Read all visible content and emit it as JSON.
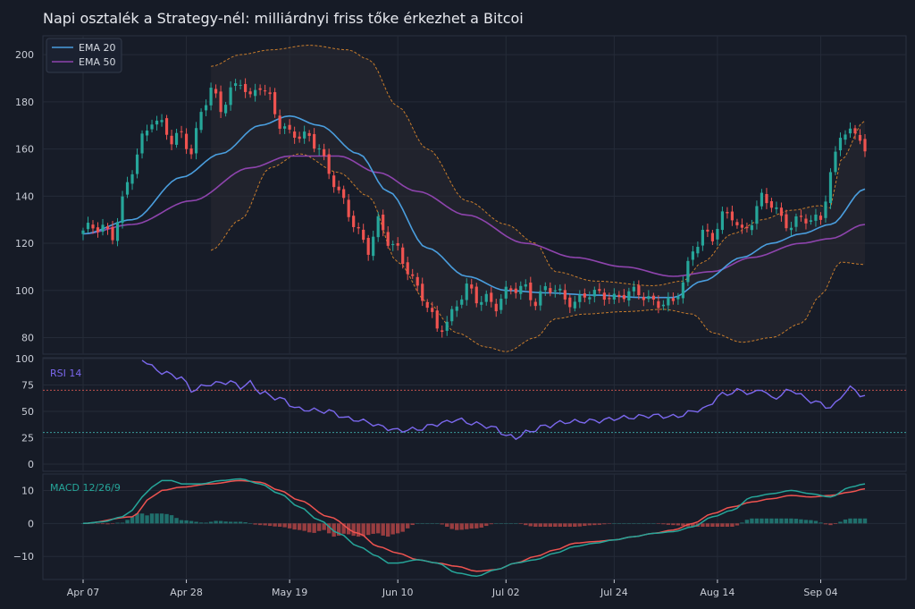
{
  "title": "Napi osztalék a Strategy-nél: milliárdnyi friss tőke érkezhet a Bitcoi",
  "colors": {
    "background": "#161b26",
    "panel": "#171c28",
    "grid": "#252b38",
    "up": "#26a69a",
    "down": "#ef5350",
    "ema20": "#4a9ede",
    "ema50": "#8e44ad",
    "band": "#c77c2c",
    "rsi": "#7b68ee",
    "rsi_upper": "#c0504d",
    "rsi_lower": "#3a9b9b",
    "macd": "#26a69a",
    "signal": "#ef5350"
  },
  "chart_data": [
    {
      "type": "candlestick",
      "x_ticks": [
        "Apr 07",
        "Apr 28",
        "May 19",
        "Jun 10",
        "Jul 02",
        "Jul 24",
        "Aug 14",
        "Sep 04"
      ],
      "y_ticks": [
        80,
        100,
        120,
        140,
        160,
        180,
        200
      ],
      "ylim": [
        73,
        208
      ],
      "legend": [
        "EMA 20",
        "EMA 50"
      ],
      "legend_position": "top-left",
      "grid": true,
      "overlays": [
        "EMA 20",
        "EMA 50",
        "Bollinger Bands (from Apr 28)"
      ],
      "close_keypoints": [
        [
          0,
          124
        ],
        [
          2,
          126
        ],
        [
          4,
          128
        ],
        [
          6,
          124
        ],
        [
          8,
          137
        ],
        [
          10,
          150
        ],
        [
          12,
          165
        ],
        [
          14,
          174
        ],
        [
          16,
          170
        ],
        [
          18,
          162
        ],
        [
          20,
          166
        ],
        [
          22,
          160
        ],
        [
          24,
          176
        ],
        [
          26,
          184
        ],
        [
          28,
          176
        ],
        [
          30,
          186
        ],
        [
          32,
          190
        ],
        [
          34,
          180
        ],
        [
          36,
          186
        ],
        [
          38,
          182
        ],
        [
          40,
          172
        ],
        [
          42,
          166
        ],
        [
          44,
          164
        ],
        [
          46,
          165
        ],
        [
          48,
          162
        ],
        [
          50,
          150
        ],
        [
          52,
          140
        ],
        [
          54,
          132
        ],
        [
          56,
          126
        ],
        [
          58,
          118
        ],
        [
          60,
          128
        ],
        [
          62,
          120
        ],
        [
          64,
          118
        ],
        [
          66,
          110
        ],
        [
          68,
          100
        ],
        [
          70,
          92
        ],
        [
          72,
          84
        ],
        [
          74,
          88
        ],
        [
          76,
          94
        ],
        [
          78,
          100
        ],
        [
          80,
          96
        ],
        [
          82,
          98
        ],
        [
          84,
          94
        ],
        [
          86,
          98
        ],
        [
          88,
          100
        ],
        [
          90,
          102
        ],
        [
          92,
          96
        ],
        [
          94,
          100
        ],
        [
          96,
          99
        ],
        [
          98,
          97
        ],
        [
          100,
          96
        ],
        [
          102,
          98
        ],
        [
          104,
          97
        ],
        [
          106,
          98
        ],
        [
          108,
          98
        ],
        [
          110,
          99
        ],
        [
          112,
          98
        ],
        [
          114,
          97
        ],
        [
          116,
          96
        ],
        [
          118,
          96
        ],
        [
          120,
          94
        ],
        [
          122,
          102
        ],
        [
          124,
          118
        ],
        [
          126,
          126
        ],
        [
          128,
          122
        ],
        [
          130,
          130
        ],
        [
          132,
          132
        ],
        [
          134,
          126
        ],
        [
          136,
          130
        ],
        [
          138,
          138
        ],
        [
          140,
          136
        ],
        [
          142,
          132
        ],
        [
          144,
          128
        ],
        [
          146,
          130
        ],
        [
          148,
          128
        ],
        [
          150,
          132
        ],
        [
          152,
          150
        ],
        [
          154,
          166
        ],
        [
          156,
          165
        ],
        [
          158,
          166
        ],
        [
          159,
          160
        ]
      ],
      "ema20_keypoints": [
        [
          0,
          124
        ],
        [
          10,
          130
        ],
        [
          20,
          148
        ],
        [
          28,
          158
        ],
        [
          36,
          170
        ],
        [
          42,
          174
        ],
        [
          48,
          170
        ],
        [
          56,
          158
        ],
        [
          62,
          142
        ],
        [
          70,
          118
        ],
        [
          78,
          106
        ],
        [
          86,
          100
        ],
        [
          94,
          99
        ],
        [
          104,
          98
        ],
        [
          114,
          97
        ],
        [
          120,
          97
        ],
        [
          126,
          104
        ],
        [
          134,
          114
        ],
        [
          140,
          120
        ],
        [
          146,
          124
        ],
        [
          152,
          128
        ],
        [
          159,
          143
        ]
      ],
      "ema50_keypoints": [
        [
          0,
          124
        ],
        [
          10,
          128
        ],
        [
          22,
          138
        ],
        [
          34,
          152
        ],
        [
          42,
          157
        ],
        [
          52,
          157
        ],
        [
          60,
          150
        ],
        [
          68,
          142
        ],
        [
          78,
          132
        ],
        [
          90,
          120
        ],
        [
          100,
          114
        ],
        [
          110,
          110
        ],
        [
          120,
          106
        ],
        [
          128,
          108
        ],
        [
          136,
          114
        ],
        [
          146,
          120
        ],
        [
          152,
          122
        ],
        [
          159,
          128
        ]
      ],
      "band_start_index": 26,
      "band_upper_keypoints": [
        [
          26,
          195
        ],
        [
          32,
          200
        ],
        [
          38,
          202
        ],
        [
          46,
          204
        ],
        [
          54,
          202
        ],
        [
          58,
          198
        ],
        [
          64,
          178
        ],
        [
          70,
          160
        ],
        [
          78,
          138
        ],
        [
          86,
          128
        ],
        [
          92,
          120
        ],
        [
          96,
          108
        ],
        [
          104,
          104
        ],
        [
          116,
          102
        ],
        [
          122,
          104
        ],
        [
          126,
          112
        ],
        [
          132,
          124
        ],
        [
          138,
          130
        ],
        [
          144,
          134
        ],
        [
          150,
          136
        ],
        [
          152,
          135
        ],
        [
          154,
          155
        ],
        [
          159,
          172
        ]
      ],
      "band_lower_keypoints": [
        [
          26,
          117
        ],
        [
          32,
          130
        ],
        [
          38,
          152
        ],
        [
          44,
          158
        ],
        [
          52,
          150
        ],
        [
          58,
          140
        ],
        [
          64,
          112
        ],
        [
          70,
          95
        ],
        [
          76,
          82
        ],
        [
          82,
          76
        ],
        [
          86,
          74
        ],
        [
          92,
          80
        ],
        [
          96,
          88
        ],
        [
          102,
          90
        ],
        [
          110,
          91
        ],
        [
          118,
          92
        ],
        [
          124,
          90
        ],
        [
          128,
          82
        ],
        [
          134,
          78
        ],
        [
          140,
          80
        ],
        [
          146,
          86
        ],
        [
          150,
          98
        ],
        [
          154,
          112
        ],
        [
          159,
          111
        ]
      ]
    },
    {
      "type": "line",
      "legend": [
        "RSI 14"
      ],
      "y_ticks": [
        0,
        25,
        50,
        75,
        100
      ],
      "ylim": [
        0,
        100
      ],
      "reference_lines": [
        70,
        30
      ],
      "rsi_keypoints": [
        [
          12,
          100
        ],
        [
          14,
          92
        ],
        [
          16,
          87
        ],
        [
          20,
          82
        ],
        [
          22,
          70
        ],
        [
          26,
          76
        ],
        [
          30,
          78
        ],
        [
          32,
          73
        ],
        [
          34,
          77
        ],
        [
          36,
          68
        ],
        [
          40,
          62
        ],
        [
          44,
          52
        ],
        [
          50,
          50
        ],
        [
          54,
          43
        ],
        [
          58,
          40
        ],
        [
          60,
          36
        ],
        [
          64,
          32
        ],
        [
          68,
          33
        ],
        [
          72,
          38
        ],
        [
          76,
          42
        ],
        [
          80,
          38
        ],
        [
          84,
          34
        ],
        [
          86,
          27
        ],
        [
          88,
          25
        ],
        [
          90,
          30
        ],
        [
          94,
          36
        ],
        [
          98,
          40
        ],
        [
          104,
          41
        ],
        [
          110,
          44
        ],
        [
          116,
          46
        ],
        [
          120,
          45
        ],
        [
          126,
          52
        ],
        [
          130,
          66
        ],
        [
          134,
          70
        ],
        [
          136,
          66
        ],
        [
          138,
          72
        ],
        [
          140,
          62
        ],
        [
          144,
          70
        ],
        [
          148,
          60
        ],
        [
          152,
          54
        ],
        [
          156,
          72
        ],
        [
          159,
          64
        ]
      ]
    },
    {
      "type": "line",
      "legend": [
        "MACD 12/26/9"
      ],
      "y_ticks": [
        -10,
        0,
        10
      ],
      "ylim": [
        -17,
        15
      ],
      "macd_keypoints": [
        [
          0,
          0
        ],
        [
          4,
          0.5
        ],
        [
          8,
          2
        ],
        [
          10,
          4
        ],
        [
          12,
          8
        ],
        [
          14,
          11
        ],
        [
          16,
          13
        ],
        [
          18,
          13
        ],
        [
          20,
          12
        ],
        [
          24,
          12
        ],
        [
          28,
          13
        ],
        [
          32,
          13.5
        ],
        [
          36,
          12
        ],
        [
          40,
          9
        ],
        [
          44,
          5
        ],
        [
          48,
          1
        ],
        [
          52,
          -3
        ],
        [
          56,
          -7
        ],
        [
          60,
          -10
        ],
        [
          62,
          -12
        ],
        [
          64,
          -12
        ],
        [
          68,
          -11
        ],
        [
          72,
          -12
        ],
        [
          76,
          -15
        ],
        [
          80,
          -16
        ],
        [
          84,
          -14
        ],
        [
          88,
          -12
        ],
        [
          92,
          -11
        ],
        [
          96,
          -9
        ],
        [
          100,
          -7
        ],
        [
          104,
          -6
        ],
        [
          108,
          -5
        ],
        [
          112,
          -4
        ],
        [
          116,
          -3
        ],
        [
          120,
          -2.5
        ],
        [
          124,
          -1
        ],
        [
          128,
          2
        ],
        [
          132,
          4
        ],
        [
          136,
          8
        ],
        [
          140,
          9
        ],
        [
          144,
          10
        ],
        [
          148,
          9
        ],
        [
          152,
          8
        ],
        [
          156,
          11
        ],
        [
          159,
          12
        ]
      ],
      "signal_keypoints": [
        [
          0,
          0
        ],
        [
          10,
          2
        ],
        [
          14,
          8
        ],
        [
          16,
          10
        ],
        [
          20,
          11
        ],
        [
          26,
          12
        ],
        [
          32,
          13
        ],
        [
          36,
          12.5
        ],
        [
          40,
          10
        ],
        [
          44,
          7
        ],
        [
          50,
          2
        ],
        [
          56,
          -3
        ],
        [
          60,
          -7
        ],
        [
          64,
          -9
        ],
        [
          68,
          -11
        ],
        [
          72,
          -12
        ],
        [
          76,
          -13
        ],
        [
          80,
          -14.5
        ],
        [
          84,
          -14
        ],
        [
          88,
          -12
        ],
        [
          92,
          -10
        ],
        [
          96,
          -8
        ],
        [
          100,
          -6
        ],
        [
          104,
          -5.5
        ],
        [
          108,
          -5
        ],
        [
          112,
          -4
        ],
        [
          116,
          -3
        ],
        [
          120,
          -2
        ],
        [
          124,
          0
        ],
        [
          128,
          3
        ],
        [
          132,
          5
        ],
        [
          136,
          6.5
        ],
        [
          140,
          7.5
        ],
        [
          144,
          8.5
        ],
        [
          148,
          8
        ],
        [
          152,
          8.5
        ],
        [
          156,
          9.5
        ],
        [
          159,
          10.5
        ]
      ]
    }
  ]
}
